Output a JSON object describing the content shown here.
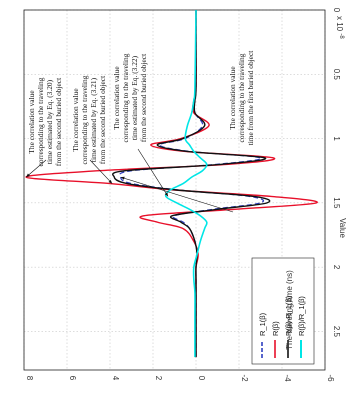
{
  "chart_data": {
    "type": "line",
    "orientation": "rotated-90-ccw",
    "title": "",
    "xlabel": "The traveling time (ns)",
    "ylabel": "Value",
    "y_multiplier": "x 10",
    "y_multiplier_exp": "-8",
    "xlim": [
      0,
      2.8
    ],
    "ylim": [
      -6,
      8
    ],
    "xticks": [
      "0",
      "0.5",
      "1",
      "1.5",
      "2",
      "2.5"
    ],
    "yticks": [
      "8",
      "6",
      "4",
      "2",
      "0",
      "-2",
      "-4",
      "-6"
    ],
    "grid": true,
    "legend_position": "bottom-left",
    "x": [
      0,
      0.6,
      0.7,
      0.8,
      0.9,
      1.0,
      1.05,
      1.1,
      1.15,
      1.2,
      1.25,
      1.3,
      1.35,
      1.4,
      1.45,
      1.5,
      1.55,
      1.6,
      1.65,
      1.7,
      1.8,
      1.9,
      2.0,
      2.1,
      2.2,
      2.4,
      2.6,
      2.7
    ],
    "series": [
      {
        "name": "R_1(β)",
        "color": "#2f3fbf",
        "dash": "5,3",
        "values": [
          0,
          0,
          0.05,
          0.05,
          -0.3,
          0.5,
          1.7,
          0.3,
          -3.0,
          -1.0,
          3.0,
          3.5,
          3.0,
          0.8,
          -2.5,
          -3.0,
          -0.8,
          1.0,
          0.6,
          0.3,
          0.05,
          -0.05,
          0,
          0,
          0,
          0,
          0,
          0
        ]
      },
      {
        "name": "R(β)",
        "color": "#e8102a",
        "dash": "",
        "values": [
          0,
          0,
          0.1,
          0.1,
          -0.6,
          0.7,
          2.1,
          0.5,
          -3.6,
          -1.5,
          4.5,
          7.9,
          4.0,
          1.0,
          -3.5,
          -5.6,
          -1.8,
          2.4,
          1.8,
          0.6,
          0.1,
          -0.1,
          0,
          0,
          0,
          0,
          0,
          0
        ]
      },
      {
        "name": "R(β)-R_1(β)",
        "color": "#111111",
        "dash": "",
        "values": [
          0,
          0,
          0.05,
          0.05,
          -0.4,
          0.6,
          1.8,
          0.4,
          -3.2,
          -1.2,
          3.3,
          3.8,
          3.2,
          0.9,
          -2.7,
          -3.3,
          -1.0,
          1.1,
          0.7,
          0.3,
          0.05,
          -0.05,
          0,
          0,
          0,
          0,
          0,
          0
        ]
      },
      {
        "name": "R(β)/R_1(β)",
        "color": "#00e6e6",
        "dash": "",
        "values": [
          0,
          0.05,
          0.1,
          0.2,
          0.4,
          0.5,
          0.3,
          0.1,
          -0.2,
          -0.5,
          -0.3,
          0.2,
          0.6,
          1.2,
          1.4,
          0.9,
          0.3,
          -0.2,
          -0.5,
          -0.4,
          -0.2,
          -0.05,
          0.1,
          0.1,
          0.05,
          0.05,
          0.05,
          0.05
        ]
      }
    ],
    "legend": [
      "R_1(β)",
      "R(β)",
      "R(β)-R_1(β)",
      "R(β)/R_1(β)"
    ],
    "annotations": [
      {
        "lines": [
          "The correlation value",
          "corresponding to the traveling",
          "time estimated by Eq. (3.20)",
          "from the second buried object"
        ],
        "target_x": 1.3,
        "target_y": 7.9
      },
      {
        "lines": [
          "The correlation value",
          "corresponding to the traveling",
          "time estimated by Eq. (3.21)",
          "from the second buried object"
        ],
        "target_x": 1.35,
        "target_y": 3.9
      },
      {
        "lines": [
          "The correlation value",
          "corresponding to the traveling",
          "time estimated by Eq. (3.22)",
          "from the second buried object"
        ],
        "target_x": 1.45,
        "target_y": 1.3
      },
      {
        "lines": [
          "The correlation value",
          "corresponding to the traveling",
          "time from the first buried object"
        ],
        "target_x": 1.3,
        "target_y": 3.5
      }
    ]
  }
}
